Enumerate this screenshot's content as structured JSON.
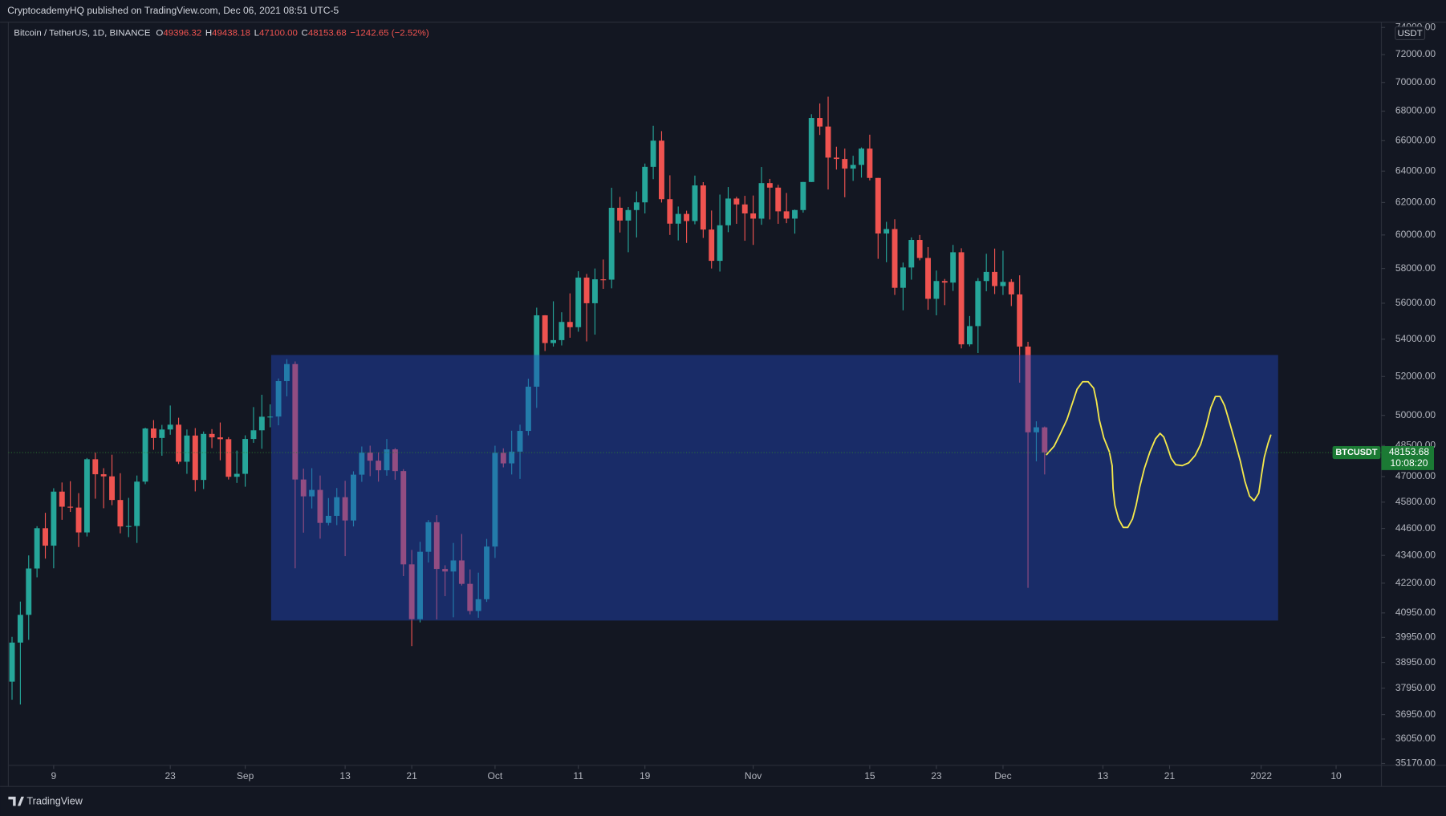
{
  "header": {
    "publisher": "CryptocademyHQ published on TradingView.com, Dec 06, 2021 08:51 UTC-5"
  },
  "footer": {
    "brand": "TradingView"
  },
  "chart_data": {
    "type": "candlestick",
    "title": "Bitcoin / TetherUS, 1D, BINANCE",
    "ohlc_legend": [
      {
        "label": "O",
        "value": "49396.32"
      },
      {
        "label": "H",
        "value": "49438.18"
      },
      {
        "label": "L",
        "value": "47100.00"
      },
      {
        "label": "C",
        "value": "48153.68"
      }
    ],
    "change": "−1242.65 (−2.52%)",
    "currency": "USDT",
    "symbol_label": "BTCUSDT",
    "last_price_label": "48153.68",
    "countdown": "10:08:20",
    "up_color": "#26a69a",
    "down_color": "#ef5350",
    "log_scale": true,
    "x": [
      "2021-08-04",
      "2021-08-05",
      "2021-08-06",
      "2021-08-07",
      "2021-08-08",
      "2021-08-09",
      "2021-08-10",
      "2021-08-11",
      "2021-08-12",
      "2021-08-13",
      "2021-08-14",
      "2021-08-15",
      "2021-08-16",
      "2021-08-17",
      "2021-08-18",
      "2021-08-19",
      "2021-08-20",
      "2021-08-21",
      "2021-08-22",
      "2021-08-23",
      "2021-08-24",
      "2021-08-25",
      "2021-08-26",
      "2021-08-27",
      "2021-08-28",
      "2021-08-29",
      "2021-08-30",
      "2021-08-31",
      "2021-09-01",
      "2021-09-02",
      "2021-09-03",
      "2021-09-04",
      "2021-09-05",
      "2021-09-06",
      "2021-09-07",
      "2021-09-08",
      "2021-09-09",
      "2021-09-10",
      "2021-09-11",
      "2021-09-12",
      "2021-09-13",
      "2021-09-14",
      "2021-09-15",
      "2021-09-16",
      "2021-09-17",
      "2021-09-18",
      "2021-09-19",
      "2021-09-20",
      "2021-09-21",
      "2021-09-22",
      "2021-09-23",
      "2021-09-24",
      "2021-09-25",
      "2021-09-26",
      "2021-09-27",
      "2021-09-28",
      "2021-09-29",
      "2021-09-30",
      "2021-10-01",
      "2021-10-02",
      "2021-10-03",
      "2021-10-04",
      "2021-10-05",
      "2021-10-06",
      "2021-10-07",
      "2021-10-08",
      "2021-10-09",
      "2021-10-10",
      "2021-10-11",
      "2021-10-12",
      "2021-10-13",
      "2021-10-14",
      "2021-10-15",
      "2021-10-16",
      "2021-10-17",
      "2021-10-18",
      "2021-10-19",
      "2021-10-20",
      "2021-10-21",
      "2021-10-22",
      "2021-10-23",
      "2021-10-24",
      "2021-10-25",
      "2021-10-26",
      "2021-10-27",
      "2021-10-28",
      "2021-10-29",
      "2021-10-30",
      "2021-10-31",
      "2021-11-01",
      "2021-11-02",
      "2021-11-03",
      "2021-11-04",
      "2021-11-05",
      "2021-11-06",
      "2021-11-07",
      "2021-11-08",
      "2021-11-09",
      "2021-11-10",
      "2021-11-11",
      "2021-11-12",
      "2021-11-13",
      "2021-11-14",
      "2021-11-15",
      "2021-11-16",
      "2021-11-17",
      "2021-11-18",
      "2021-11-19",
      "2021-11-20",
      "2021-11-21",
      "2021-11-22",
      "2021-11-23",
      "2021-11-24",
      "2021-11-25",
      "2021-11-26",
      "2021-11-27",
      "2021-11-28",
      "2021-11-29",
      "2021-11-30",
      "2021-12-01",
      "2021-12-02",
      "2021-12-03",
      "2021-12-04",
      "2021-12-05",
      "2021-12-06"
    ],
    "open": [
      38200,
      39740,
      40870,
      42830,
      44610,
      43830,
      46290,
      45590,
      45550,
      44420,
      47830,
      47110,
      47010,
      45900,
      44690,
      44710,
      46760,
      49340,
      48870,
      49290,
      49530,
      47710,
      48990,
      46840,
      49070,
      48900,
      48810,
      46990,
      47130,
      48820,
      49250,
      49930,
      49940,
      51760,
      52660,
      46860,
      46070,
      46370,
      44850,
      45170,
      46030,
      44960,
      47090,
      48150,
      47760,
      47300,
      48310,
      47260,
      43010,
      40690,
      43560,
      44880,
      42810,
      42700,
      43180,
      42170,
      41030,
      41520,
      43790,
      48140,
      47630,
      48200,
      49220,
      51470,
      55320,
      53790,
      53950,
      54950,
      54660,
      57470,
      56000,
      57370,
      57350,
      61670,
      60880,
      61530,
      62010,
      64280,
      66000,
      62210,
      60690,
      61290,
      60850,
      63080,
      60330,
      58450,
      60590,
      62250,
      61880,
      61320,
      61000,
      63230,
      62940,
      61450,
      61000,
      61530,
      63300,
      67530,
      66950,
      64880,
      64790,
      64160,
      64400,
      65470,
      63560,
      60090,
      60360,
      56880,
      58060,
      59700,
      58620,
      56250,
      57270,
      57180,
      58960,
      53720,
      54720,
      57270,
      57800,
      56980,
      57220,
      56500,
      53600,
      49150,
      49396.32
    ],
    "high": [
      39970,
      41420,
      43400,
      44700,
      45310,
      46450,
      46720,
      46780,
      46220,
      47890,
      48150,
      47400,
      48050,
      47160,
      46000,
      47050,
      49380,
      49760,
      49520,
      50500,
      49880,
      49290,
      49360,
      49190,
      49310,
      49640,
      48910,
      48250,
      49000,
      50420,
      51050,
      50560,
      51900,
      52920,
      52800,
      47380,
      47400,
      47050,
      45990,
      46460,
      46800,
      47250,
      48450,
      48490,
      48160,
      48820,
      48370,
      47350,
      43640,
      44000,
      44980,
      45200,
      42970,
      43950,
      44350,
      42790,
      42650,
      44130,
      48490,
      48360,
      49230,
      49530,
      51890,
      55750,
      55330,
      56110,
      55490,
      56560,
      57840,
      57680,
      58000,
      58530,
      62930,
      62350,
      61720,
      62700,
      64490,
      67000,
      66640,
      63730,
      61750,
      61490,
      63710,
      63290,
      61500,
      62500,
      62980,
      62360,
      62420,
      62440,
      64270,
      63500,
      63120,
      62600,
      61560,
      63300,
      67790,
      68530,
      69000,
      65600,
      65470,
      65000,
      65550,
      66400,
      63560,
      60800,
      60960,
      58350,
      59850,
      60000,
      59270,
      57880,
      57390,
      59400,
      59200,
      55280,
      57440,
      58870,
      59180,
      59050,
      57380,
      57600,
      53860,
      49700,
      49438.18
    ],
    "low": [
      37510,
      37330,
      39850,
      42450,
      43260,
      42840,
      44990,
      45350,
      43770,
      44240,
      45960,
      45520,
      45660,
      44380,
      44210,
      43950,
      46640,
      48290,
      48000,
      49030,
      47600,
      47130,
      46300,
      46410,
      48370,
      47780,
      46860,
      46700,
      46520,
      48630,
      48340,
      49400,
      49500,
      50970,
      42840,
      44410,
      45510,
      44140,
      44740,
      44750,
      43370,
      44690,
      46750,
      47020,
      46760,
      47040,
      46850,
      42500,
      39600,
      40560,
      43090,
      40680,
      41650,
      40770,
      42100,
      40890,
      40750,
      41410,
      43290,
      47440,
      47100,
      46890,
      49000,
      50380,
      53360,
      53600,
      53660,
      54080,
      54410,
      53880,
      54250,
      56820,
      56850,
      60150,
      58960,
      59850,
      61320,
      63480,
      62000,
      60000,
      59670,
      59520,
      60650,
      59820,
      58000,
      57820,
      60170,
      60680,
      59650,
      59400,
      60620,
      60950,
      60680,
      60720,
      60080,
      61370,
      63300,
      66380,
      62820,
      64100,
      62330,
      63370,
      63580,
      63400,
      58570,
      58370,
      56470,
      55600,
      57350,
      58480,
      55630,
      55320,
      55890,
      56700,
      53500,
      53610,
      53250,
      56680,
      56520,
      56470,
      55840,
      51680,
      42000,
      47730,
      47100
    ],
    "close": [
      39740,
      40870,
      42830,
      44610,
      43830,
      46290,
      45590,
      45550,
      44420,
      47830,
      47110,
      47010,
      45900,
      44690,
      44710,
      46760,
      49340,
      48870,
      49290,
      49530,
      47710,
      48990,
      46840,
      49070,
      48900,
      48810,
      46990,
      47130,
      48820,
      49250,
      49930,
      49940,
      51760,
      52660,
      46860,
      46070,
      46370,
      44850,
      45170,
      46030,
      44960,
      47090,
      48150,
      47760,
      47300,
      48310,
      47260,
      43010,
      40690,
      43560,
      44880,
      42810,
      42700,
      43180,
      42170,
      41030,
      41520,
      43790,
      48140,
      47630,
      48200,
      49220,
      51470,
      55320,
      53790,
      53950,
      54950,
      54660,
      57470,
      56000,
      57370,
      57350,
      61670,
      60880,
      61530,
      62010,
      64280,
      66000,
      62210,
      60690,
      61290,
      60850,
      63080,
      60330,
      58450,
      60590,
      62250,
      61880,
      61320,
      61000,
      63230,
      62940,
      61450,
      61000,
      61530,
      63300,
      67530,
      66950,
      64880,
      64790,
      64160,
      64400,
      65470,
      63560,
      60090,
      60360,
      56880,
      58060,
      59700,
      58620,
      56250,
      57270,
      57180,
      58960,
      53720,
      54720,
      57270,
      57800,
      56980,
      57220,
      56500,
      53600,
      49150,
      49400,
      48153.68
    ],
    "xlim": [
      "2021-08-04",
      "2022-01-14"
    ],
    "xticks": [
      {
        "value": "2021-08-09",
        "label": "9"
      },
      {
        "value": "2021-08-23",
        "label": "23"
      },
      {
        "value": "2021-09-01",
        "label": "Sep"
      },
      {
        "value": "2021-09-13",
        "label": "13"
      },
      {
        "value": "2021-09-21",
        "label": "21"
      },
      {
        "value": "2021-10-01",
        "label": "Oct"
      },
      {
        "value": "2021-10-11",
        "label": "11"
      },
      {
        "value": "2021-10-19",
        "label": "19"
      },
      {
        "value": "2021-11-01",
        "label": "Nov"
      },
      {
        "value": "2021-11-15",
        "label": "15"
      },
      {
        "value": "2021-11-23",
        "label": "23"
      },
      {
        "value": "2021-12-01",
        "label": "Dec"
      },
      {
        "value": "2021-12-13",
        "label": "13"
      },
      {
        "value": "2021-12-21",
        "label": "21"
      },
      {
        "value": "2022-01-01",
        "label": "2022"
      },
      {
        "value": "2022-01-10",
        "label": "10"
      }
    ],
    "ylim": [
      35170,
      74400
    ],
    "yticks": [
      {
        "value": 74000,
        "label": "74000.00"
      },
      {
        "value": 72000,
        "label": "72000.00"
      },
      {
        "value": 70000,
        "label": "70000.00"
      },
      {
        "value": 68000,
        "label": "68000.00"
      },
      {
        "value": 66000,
        "label": "66000.00"
      },
      {
        "value": 64000,
        "label": "64000.00"
      },
      {
        "value": 62000,
        "label": "62000.00"
      },
      {
        "value": 60000,
        "label": "60000.00"
      },
      {
        "value": 58000,
        "label": "58000.00"
      },
      {
        "value": 56000,
        "label": "56000.00"
      },
      {
        "value": 54000,
        "label": "54000.00"
      },
      {
        "value": 52000,
        "label": "52000.00"
      },
      {
        "value": 50000,
        "label": "50000.00"
      },
      {
        "value": 48500,
        "label": "48500.00"
      },
      {
        "value": 47000,
        "label": "47000.00"
      },
      {
        "value": 45800,
        "label": "45800.00"
      },
      {
        "value": 44600,
        "label": "44600.00"
      },
      {
        "value": 43400,
        "label": "43400.00"
      },
      {
        "value": 42200,
        "label": "42200.00"
      },
      {
        "value": 40950,
        "label": "40950.00"
      },
      {
        "value": 39950,
        "label": "39950.00"
      },
      {
        "value": 38950,
        "label": "38950.00"
      },
      {
        "value": 37950,
        "label": "37950.00"
      },
      {
        "value": 36950,
        "label": "36950.00"
      },
      {
        "value": 36050,
        "label": "36050.00"
      },
      {
        "value": 35170,
        "label": "35170.00"
      }
    ]
  }
}
